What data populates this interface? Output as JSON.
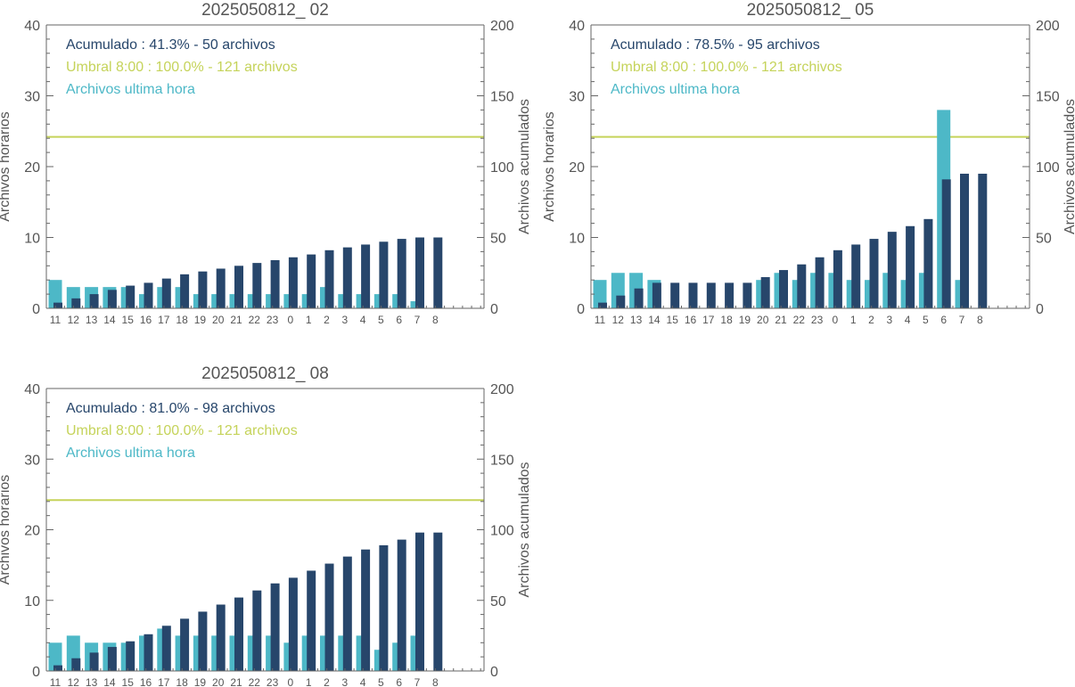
{
  "colors": {
    "hourly": "#4db8c7",
    "cumulative": "#27466b",
    "threshold": "#c5d35a",
    "axis": "#666666",
    "text": "#555555"
  },
  "chart_data": [
    {
      "type": "bar",
      "title": "2025050812_ 02",
      "categories": [
        "11",
        "12",
        "13",
        "14",
        "15",
        "16",
        "17",
        "18",
        "19",
        "20",
        "21",
        "22",
        "23",
        "0",
        "1",
        "2",
        "3",
        "4",
        "5",
        "6",
        "7",
        "8"
      ],
      "ylabel_left": "Archivos horarios",
      "ylabel_right": "Archivos acumulados",
      "ylim_left": [
        0,
        40
      ],
      "ylim_right": [
        0,
        200
      ],
      "yticks_left": [
        0,
        10,
        20,
        30,
        40
      ],
      "yticks_right": [
        0,
        50,
        100,
        150,
        200
      ],
      "legend": [
        "Acumulado : 41.3% - 50 archivos",
        "Umbral 8:00 : 100.0% - 121 archivos",
        "Archivos ultima hora"
      ],
      "legend_placement": "top-left",
      "threshold": 121,
      "series": [
        {
          "name": "Archivos ultima hora",
          "axis": "left",
          "values": [
            4,
            3,
            3,
            3,
            3,
            2,
            3,
            3,
            2,
            2,
            2,
            2,
            2,
            2,
            2,
            3,
            2,
            2,
            2,
            2,
            1,
            0
          ]
        },
        {
          "name": "Acumulado",
          "axis": "right",
          "values": [
            4,
            7,
            10,
            13,
            16,
            18,
            21,
            24,
            26,
            28,
            30,
            32,
            34,
            36,
            38,
            41,
            43,
            45,
            47,
            49,
            50,
            50
          ]
        }
      ]
    },
    {
      "type": "bar",
      "title": "2025050812_ 05",
      "categories": [
        "11",
        "12",
        "13",
        "14",
        "15",
        "16",
        "17",
        "18",
        "19",
        "20",
        "21",
        "22",
        "23",
        "0",
        "1",
        "2",
        "3",
        "4",
        "5",
        "6",
        "7",
        "8"
      ],
      "ylabel_left": "Archivos horarios",
      "ylabel_right": "Archivos acumulados",
      "ylim_left": [
        0,
        40
      ],
      "ylim_right": [
        0,
        200
      ],
      "yticks_left": [
        0,
        10,
        20,
        30,
        40
      ],
      "yticks_right": [
        0,
        50,
        100,
        150,
        200
      ],
      "legend": [
        "Acumulado : 78.5% - 95 archivos",
        "Umbral 8:00 : 100.0% - 121 archivos",
        "Archivos ultima hora"
      ],
      "legend_placement": "top-left",
      "threshold": 121,
      "series": [
        {
          "name": "Archivos ultima hora",
          "axis": "left",
          "values": [
            4,
            5,
            5,
            4,
            0,
            0,
            0,
            0,
            0,
            4,
            5,
            4,
            5,
            5,
            4,
            4,
            5,
            4,
            5,
            28,
            4,
            0
          ]
        },
        {
          "name": "Acumulado",
          "axis": "right",
          "values": [
            4,
            9,
            14,
            18,
            18,
            18,
            18,
            18,
            18,
            22,
            27,
            31,
            36,
            41,
            45,
            49,
            54,
            58,
            63,
            91,
            95,
            95
          ]
        }
      ]
    },
    {
      "type": "bar",
      "title": "2025050812_ 08",
      "categories": [
        "11",
        "12",
        "13",
        "14",
        "15",
        "16",
        "17",
        "18",
        "19",
        "20",
        "21",
        "22",
        "23",
        "0",
        "1",
        "2",
        "3",
        "4",
        "5",
        "6",
        "7",
        "8"
      ],
      "ylabel_left": "Archivos horarios",
      "ylabel_right": "Archivos acumulados",
      "ylim_left": [
        0,
        40
      ],
      "ylim_right": [
        0,
        200
      ],
      "yticks_left": [
        0,
        10,
        20,
        30,
        40
      ],
      "yticks_right": [
        0,
        50,
        100,
        150,
        200
      ],
      "legend": [
        "Acumulado : 81.0% - 98 archivos",
        "Umbral 8:00 : 100.0% - 121 archivos",
        "Archivos ultima hora"
      ],
      "legend_placement": "top-left",
      "threshold": 121,
      "series": [
        {
          "name": "Archivos ultima hora",
          "axis": "left",
          "values": [
            4,
            5,
            4,
            4,
            4,
            5,
            6,
            5,
            5,
            5,
            5,
            5,
            5,
            4,
            5,
            5,
            5,
            5,
            3,
            4,
            5,
            0
          ]
        },
        {
          "name": "Acumulado",
          "axis": "right",
          "values": [
            4,
            9,
            13,
            17,
            21,
            26,
            32,
            37,
            42,
            47,
            52,
            57,
            62,
            66,
            71,
            76,
            81,
            86,
            89,
            93,
            98,
            98
          ]
        }
      ]
    }
  ]
}
